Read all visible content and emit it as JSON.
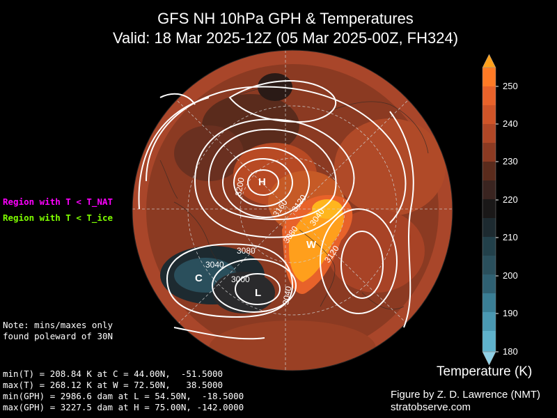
{
  "title_line1": "GFS NH 10hPa GPH & Temperatures",
  "title_line2": "Valid: 18 Mar 2025-12Z  (05 Mar 2025-00Z, FH324)",
  "legend": {
    "nat": {
      "label": "Region with T < T_NAT",
      "color": "#ff00ff"
    },
    "ice": {
      "label": "Region with T < T_ice",
      "color": "#7fff00"
    }
  },
  "note": {
    "line1": "Note: mins/maxes only",
    "line2": "found poleward of 30N"
  },
  "stats": {
    "min_t": "min(T) = 208.84 K at C = 44.00N,  -51.5000",
    "max_t": "max(T) = 268.12 K at W = 72.50N,   38.5000",
    "min_gph": "min(GPH) = 2986.6 dam at L = 54.50N,  -18.5000",
    "max_gph": "max(GPH) = 3227.5 dam at H = 75.00N, -142.0000"
  },
  "markers": {
    "H": "H",
    "L": "L",
    "C": "C",
    "W": "W"
  },
  "contour_labels": {
    "c3200": "3200",
    "c3160": "3160",
    "c3120a": "3120",
    "c3040a": "3040",
    "c3080a": "3080",
    "c3080b": "3080",
    "c3040b": "3040",
    "c3000": "3000",
    "c3040c": "3040",
    "c3120b": "3120"
  },
  "colorbar": {
    "title": "Temperature (K)",
    "ticks": [
      "250",
      "240",
      "230",
      "220",
      "210",
      "200",
      "190",
      "180"
    ],
    "colors": {
      "orange": "#ff9f1c",
      "orange_red": "#e8622a",
      "rust": "#c1512a",
      "brown": "#8b3a22",
      "dark_brown": "#5a2b1c",
      "near_black": "#2a1a16",
      "dark_slate": "#1d2a30",
      "slate": "#2a4f5c",
      "teal": "#3a7e95",
      "light_blue": "#6fbfd9"
    }
  },
  "credit": {
    "line1": "Figure by Z. D. Lawrence (NMT)",
    "line2": "stratobserve.com"
  }
}
